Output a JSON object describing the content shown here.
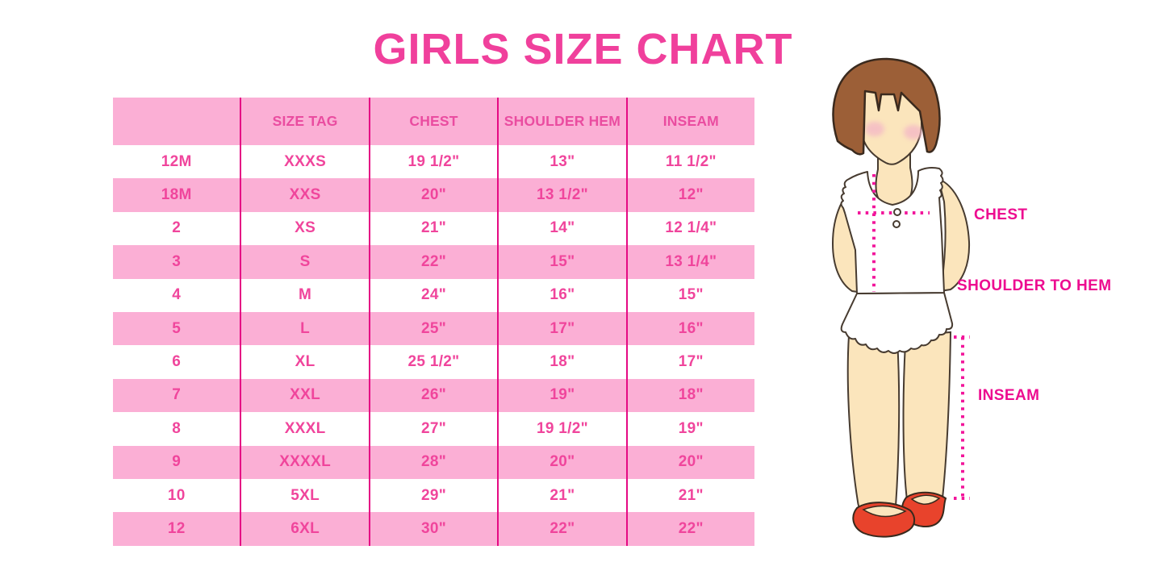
{
  "title": "GIRLS SIZE CHART",
  "chart_data": {
    "type": "table",
    "title": "GIRLS SIZE CHART",
    "columns": [
      "",
      "SIZE TAG",
      "CHEST",
      "SHOULDER HEM",
      "INSEAM"
    ],
    "rows": [
      [
        "12M",
        "XXXS",
        "19 1/2\"",
        "13\"",
        "11 1/2\""
      ],
      [
        "18M",
        "XXS",
        "20\"",
        "13 1/2\"",
        "12\""
      ],
      [
        "2",
        "XS",
        "21\"",
        "14\"",
        "12 1/4\""
      ],
      [
        "3",
        "S",
        "22\"",
        "15\"",
        "13 1/4\""
      ],
      [
        "4",
        "M",
        "24\"",
        "16\"",
        "15\""
      ],
      [
        "5",
        "L",
        "25\"",
        "17\"",
        "16\""
      ],
      [
        "6",
        "XL",
        "25 1/2\"",
        "18\"",
        "17\""
      ],
      [
        "7",
        "XXL",
        "26\"",
        "19\"",
        "18\""
      ],
      [
        "8",
        "XXXL",
        "27\"",
        "19 1/2\"",
        "19\""
      ],
      [
        "9",
        "XXXXL",
        "28\"",
        "20\"",
        "20\""
      ],
      [
        "10",
        "5XL",
        "29\"",
        "21\"",
        "21\""
      ],
      [
        "12",
        "6XL",
        "30\"",
        "22\"",
        "22\""
      ]
    ],
    "row_striping": [
      "white",
      "pink"
    ],
    "legend_position": "none",
    "grid": "vertical-dividers-only"
  },
  "figure": {
    "labels": {
      "chest": "CHEST",
      "shoulder_to_hem": "SHOULDER TO HEM",
      "inseam": "INSEAM"
    }
  },
  "colors": {
    "title_pink": "#F0409C",
    "row_pink": "#FBAFD5",
    "divider_pink": "#E50A84",
    "table_text_pink": "#F0459C",
    "measure_label_magenta": "#ED0C90",
    "dotted_line_magenta": "#F2169B",
    "hair_brown": "#9C5F37",
    "skin": "#FBE5BC",
    "blush": "#F4B9C6",
    "shoe_red": "#E8432C",
    "outline_dark": "#473B30"
  }
}
